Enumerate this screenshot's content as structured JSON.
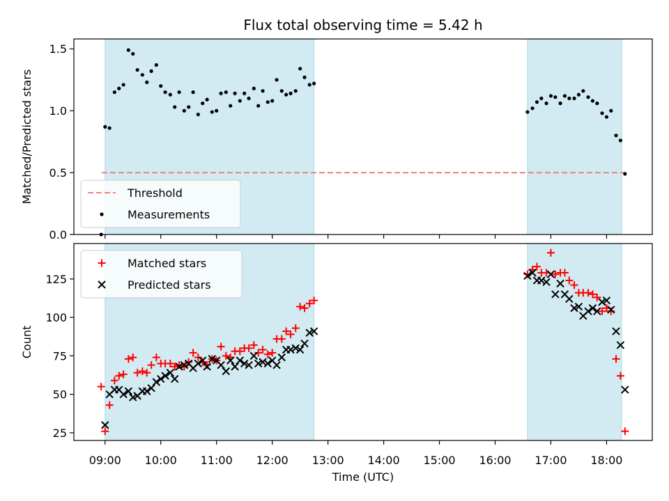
{
  "chart_data": {
    "title": "Flux total observing time = 5.42 h",
    "x_label": "Time (UTC)",
    "x_ticks": [
      "09:00",
      "10:00",
      "11:00",
      "12:00",
      "13:00",
      "14:00",
      "15:00",
      "16:00",
      "17:00",
      "18:00"
    ],
    "x_range_hours": [
      8.44,
      18.82
    ],
    "shaded_intervals_hours": [
      [
        9.0,
        12.75
      ],
      [
        16.58,
        18.27
      ]
    ],
    "shade_color": "#add8e6",
    "panels": [
      {
        "type": "scatter",
        "y_label": "Matched/Predicted stars",
        "y_range": [
          0.0,
          1.58
        ],
        "y_ticks": [
          "0.0",
          "0.5",
          "1.0",
          "1.5"
        ],
        "y_tick_values": [
          0.0,
          0.5,
          1.0,
          1.5
        ],
        "threshold": {
          "name": "Threshold",
          "y": 0.5,
          "x_range": [
            8.94,
            18.36
          ],
          "color": "#f08080"
        },
        "legend_location": "lower left",
        "legend": [
          {
            "name": "Threshold",
            "marker": "dashed-line",
            "color": "#f08080"
          },
          {
            "name": "Measurements",
            "marker": "dot",
            "color": "#000000"
          }
        ],
        "series": [
          {
            "name": "Measurements",
            "color": "#000000",
            "x": [
              8.93,
              9.0,
              9.08,
              9.17,
              9.25,
              9.33,
              9.42,
              9.5,
              9.58,
              9.67,
              9.75,
              9.83,
              9.92,
              10.0,
              10.08,
              10.17,
              10.25,
              10.33,
              10.42,
              10.5,
              10.58,
              10.67,
              10.75,
              10.83,
              10.92,
              11.0,
              11.08,
              11.17,
              11.25,
              11.33,
              11.42,
              11.5,
              11.58,
              11.67,
              11.75,
              11.83,
              11.92,
              12.0,
              12.08,
              12.17,
              12.25,
              12.33,
              12.42,
              12.5,
              12.58,
              12.67,
              12.75,
              16.58,
              16.67,
              16.75,
              16.83,
              16.92,
              17.0,
              17.08,
              17.17,
              17.25,
              17.33,
              17.42,
              17.5,
              17.58,
              17.67,
              17.75,
              17.83,
              17.92,
              18.0,
              18.08,
              18.17,
              18.25,
              18.33
            ],
            "y": [
              0.0,
              0.87,
              0.86,
              1.15,
              1.18,
              1.21,
              1.49,
              1.46,
              1.33,
              1.29,
              1.23,
              1.32,
              1.37,
              1.2,
              1.15,
              1.13,
              1.03,
              1.15,
              1.0,
              1.03,
              1.15,
              0.97,
              1.06,
              1.09,
              0.99,
              1.0,
              1.14,
              1.15,
              1.04,
              1.14,
              1.08,
              1.14,
              1.1,
              1.18,
              1.04,
              1.16,
              1.07,
              1.08,
              1.25,
              1.16,
              1.13,
              1.14,
              1.16,
              1.34,
              1.27,
              1.21,
              1.22,
              0.99,
              1.02,
              1.07,
              1.1,
              1.06,
              1.12,
              1.11,
              1.06,
              1.12,
              1.1,
              1.1,
              1.13,
              1.16,
              1.11,
              1.08,
              1.06,
              0.98,
              0.95,
              1.0,
              0.8,
              0.76,
              0.49
            ]
          }
        ]
      },
      {
        "type": "scatter",
        "y_label": "Count",
        "y_range": [
          20,
          148
        ],
        "y_ticks": [
          "25",
          "50",
          "75",
          "100",
          "125"
        ],
        "y_tick_values": [
          25,
          50,
          75,
          100,
          125
        ],
        "legend_location": "upper left",
        "legend": [
          {
            "name": "Matched stars",
            "marker": "plus",
            "color": "#ff0000"
          },
          {
            "name": "Predicted stars",
            "marker": "x",
            "color": "#000000"
          }
        ],
        "series": [
          {
            "name": "Matched stars",
            "marker": "plus",
            "color": "#ff0000",
            "x": [
              8.93,
              9.0,
              9.08,
              9.17,
              9.25,
              9.33,
              9.42,
              9.5,
              9.58,
              9.67,
              9.75,
              9.83,
              9.92,
              10.0,
              10.08,
              10.17,
              10.25,
              10.33,
              10.42,
              10.5,
              10.58,
              10.67,
              10.75,
              10.83,
              10.92,
              11.0,
              11.08,
              11.17,
              11.25,
              11.33,
              11.42,
              11.5,
              11.58,
              11.67,
              11.75,
              11.83,
              11.92,
              12.0,
              12.08,
              12.17,
              12.25,
              12.33,
              12.42,
              12.5,
              12.58,
              12.67,
              12.75,
              16.58,
              16.67,
              16.75,
              16.83,
              16.92,
              17.0,
              17.08,
              17.17,
              17.25,
              17.33,
              17.42,
              17.5,
              17.58,
              17.67,
              17.75,
              17.83,
              17.92,
              18.0,
              18.08,
              18.17,
              18.25,
              18.33
            ],
            "y": [
              55,
              26,
              43,
              59,
              62,
              63,
              73,
              74,
              64,
              65,
              64,
              69,
              74,
              70,
              70,
              70,
              68,
              69,
              68,
              71,
              77,
              74,
              71,
              69,
              73,
              72,
              81,
              75,
              74,
              78,
              78,
              80,
              80,
              82,
              77,
              79,
              76,
              77,
              86,
              86,
              91,
              89,
              93,
              107,
              106,
              109,
              111,
              128,
              131,
              133,
              129,
              129,
              142,
              128,
              129,
              129,
              124,
              121,
              116,
              116,
              116,
              115,
              113,
              104,
              106,
              104,
              73,
              62,
              26
            ]
          },
          {
            "name": "Predicted stars",
            "marker": "x",
            "color": "#000000",
            "x": [
              9.0,
              9.08,
              9.17,
              9.25,
              9.33,
              9.42,
              9.5,
              9.58,
              9.67,
              9.75,
              9.83,
              9.92,
              10.0,
              10.08,
              10.17,
              10.25,
              10.33,
              10.42,
              10.5,
              10.58,
              10.67,
              10.75,
              10.83,
              10.92,
              11.0,
              11.08,
              11.17,
              11.25,
              11.33,
              11.42,
              11.5,
              11.58,
              11.67,
              11.75,
              11.83,
              11.92,
              12.0,
              12.08,
              12.17,
              12.25,
              12.33,
              12.42,
              12.5,
              12.58,
              12.67,
              12.75,
              16.58,
              16.67,
              16.75,
              16.83,
              16.92,
              17.0,
              17.08,
              17.17,
              17.25,
              17.33,
              17.42,
              17.5,
              17.58,
              17.67,
              17.75,
              17.83,
              17.92,
              18.0,
              18.08,
              18.17,
              18.25,
              18.33
            ],
            "y": [
              30,
              50,
              53,
              53,
              50,
              52,
              48,
              49,
              52,
              52,
              54,
              58,
              60,
              62,
              64,
              60,
              68,
              69,
              70,
              67,
              70,
              72,
              68,
              73,
              72,
              69,
              65,
              72,
              68,
              72,
              70,
              69,
              75,
              70,
              71,
              70,
              72,
              69,
              74,
              79,
              79,
              80,
              79,
              83,
              90,
              91,
              127,
              129,
              124,
              124,
              123,
              128,
              115,
              122,
              115,
              112,
              106,
              107,
              101,
              104,
              106,
              104,
              110,
              111,
              105,
              91,
              82,
              53
            ]
          }
        ]
      }
    ]
  }
}
